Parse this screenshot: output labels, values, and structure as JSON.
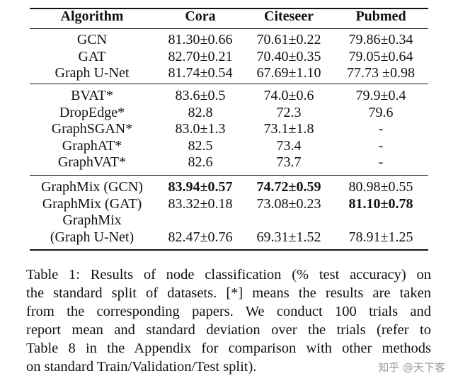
{
  "table": {
    "header": [
      "Algorithm",
      "Cora",
      "Citeseer",
      "Pubmed"
    ],
    "groups": [
      [
        [
          "GCN",
          "81.30±0.66",
          "70.61±0.22",
          "79.86±0.34"
        ],
        [
          "GAT",
          "82.70±0.21",
          "70.40±0.35",
          "79.05±0.64"
        ],
        [
          "Graph U-Net",
          "81.74±0.54",
          "67.69±1.10",
          "77.73 ±0.98"
        ]
      ],
      [
        [
          "BVAT*",
          "83.6±0.5",
          "74.0±0.6",
          "79.9±0.4"
        ],
        [
          "DropEdge*",
          "82.8",
          "72.3",
          "79.6"
        ],
        [
          "GraphSGAN*",
          "83.0±1.3",
          "73.1±1.8",
          "-"
        ],
        [
          "GraphAT*",
          "82.5",
          "73.4",
          "-"
        ],
        [
          "GraphVAT*",
          "82.6",
          "73.7",
          "-"
        ]
      ],
      [
        [
          "GraphMix (GCN)",
          {
            "text": "83.94±0.57",
            "bold": true
          },
          {
            "text": "74.72±0.59",
            "bold": true
          },
          "80.98±0.55"
        ],
        [
          "GraphMix (GAT)",
          "83.32±0.18",
          "73.08±0.23",
          {
            "text": "81.10±0.78",
            "bold": true
          }
        ],
        [
          {
            "lines": [
              "GraphMix",
              "(Graph U-Net)"
            ]
          },
          "82.47±0.76",
          "69.31±1.52",
          "78.91±1.25"
        ]
      ]
    ]
  },
  "caption": [
    "Table 1: Results of node classification (% test accuracy) on",
    "the standard split of datasets. [*] means the results are taken",
    "from the corresponding papers. We conduct 100 trials and",
    "report mean and standard deviation over the trials (refer to",
    "Table 8 in the Appendix for comparison with other methods",
    "on standard Train/Validation/Test split)."
  ],
  "watermark": "知乎 @天下客"
}
